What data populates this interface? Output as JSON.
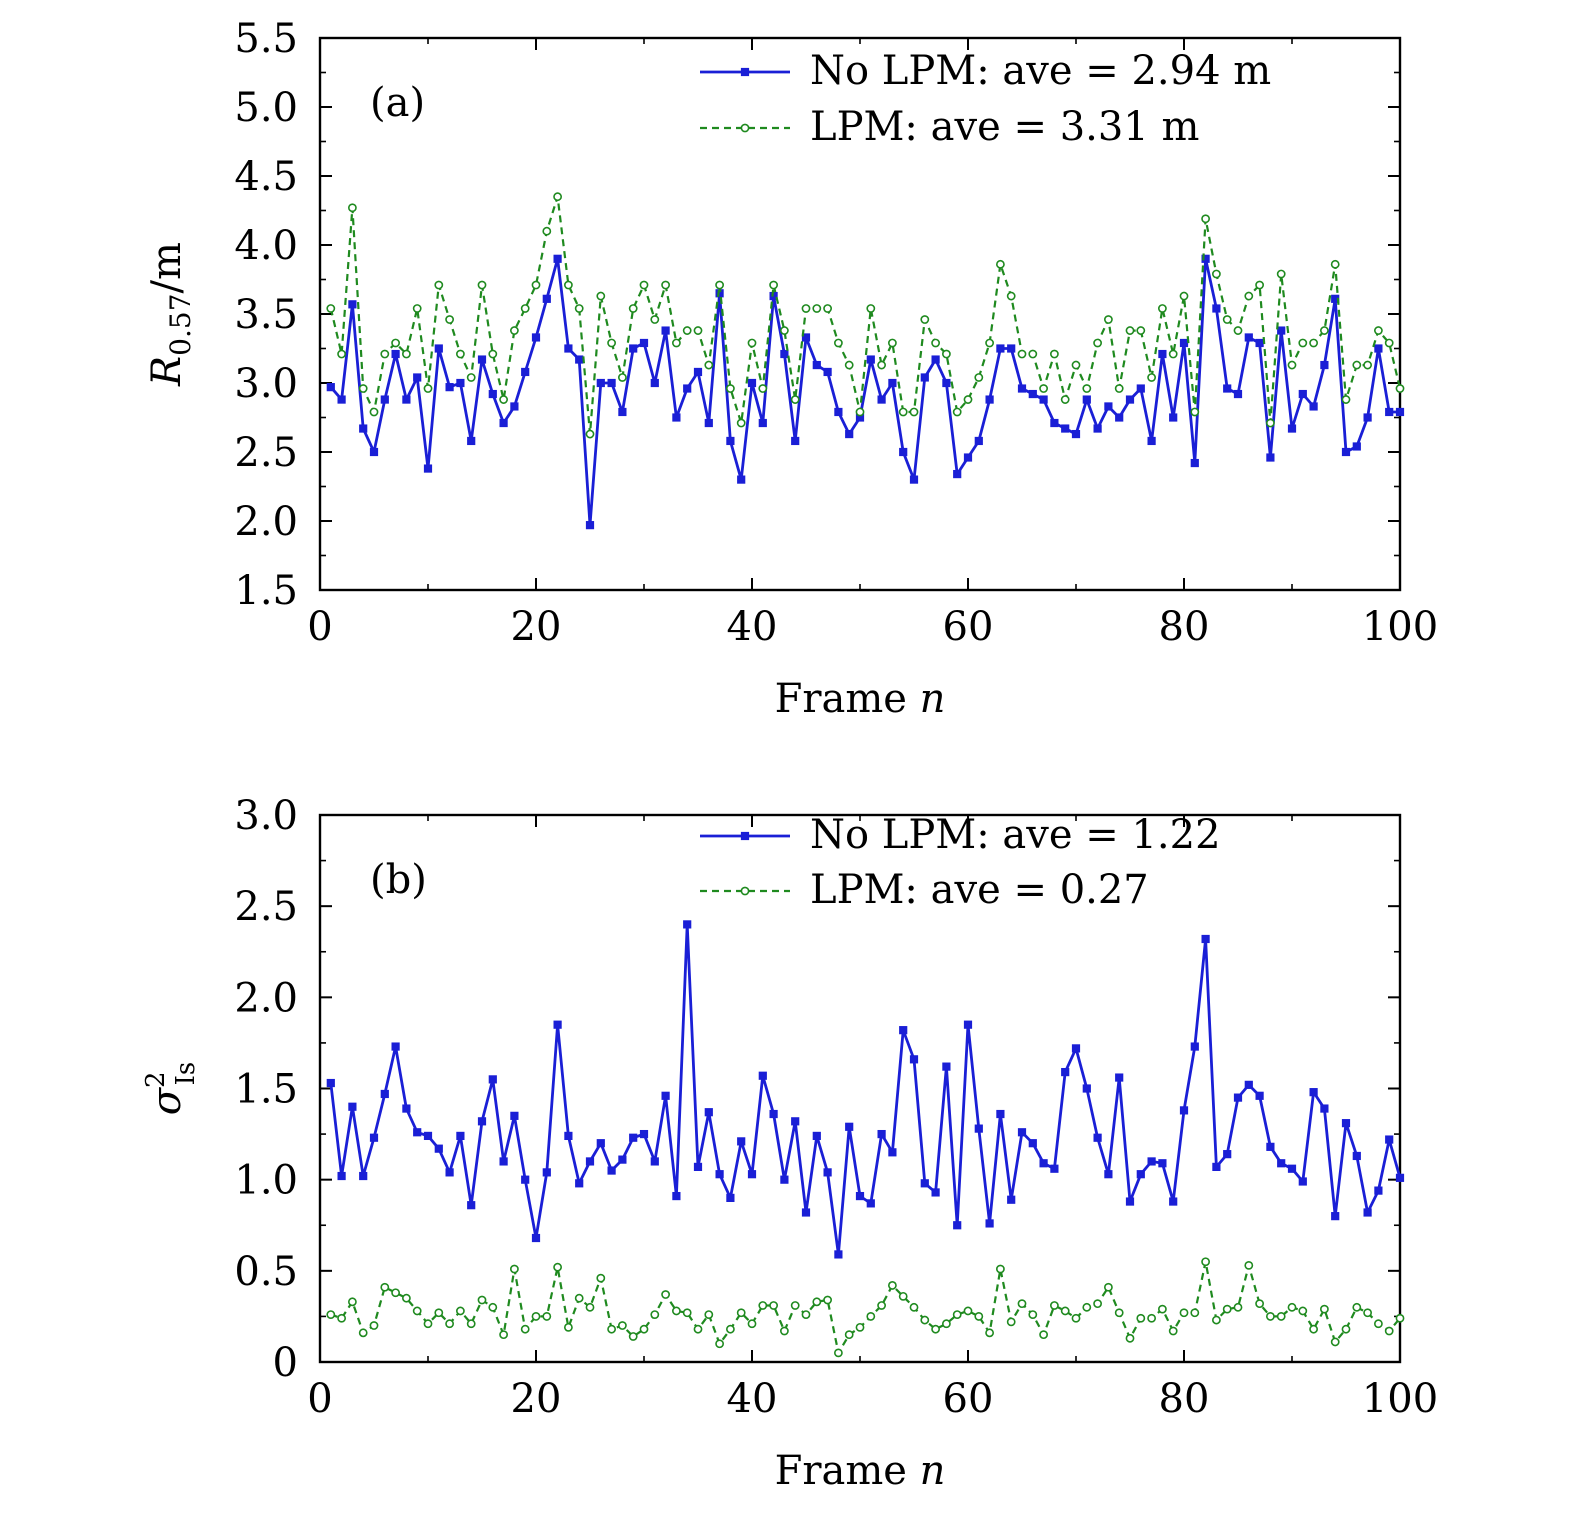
{
  "colors": {
    "no_lpm": "#1a1fd6",
    "lpm": "#1f8a1f",
    "axes": "#000000"
  },
  "chart_data": [
    {
      "type": "line",
      "panel_label": "(a)",
      "xlabel_text": "Frame ",
      "xlabel_var": "n",
      "ylabel_var": "R",
      "ylabel_sub": "0.57",
      "ylabel_unit": "/m",
      "xlim": [
        0,
        100
      ],
      "ylim": [
        1.5,
        5.5
      ],
      "xticks": [
        "0",
        "20",
        "40",
        "60",
        "80",
        "100"
      ],
      "yticks": [
        "1.5",
        "2.0",
        "2.5",
        "3.0",
        "3.5",
        "4.0",
        "4.5",
        "5.0",
        "5.5"
      ],
      "legend_position": "top-right",
      "series": [
        {
          "name": "No LPM: ave = 2.94 m",
          "style": "solid-square",
          "x_start": 1,
          "values": [
            2.97,
            2.88,
            3.57,
            2.67,
            2.5,
            2.88,
            3.21,
            2.88,
            3.04,
            2.38,
            3.25,
            2.97,
            3.0,
            2.58,
            3.17,
            2.92,
            2.71,
            2.83,
            3.08,
            3.33,
            3.61,
            3.9,
            3.25,
            3.17,
            1.97,
            3.0,
            3.0,
            2.79,
            3.25,
            3.29,
            3.0,
            3.38,
            2.75,
            2.96,
            3.08,
            2.71,
            3.65,
            2.58,
            2.3,
            3.0,
            2.71,
            3.63,
            3.21,
            2.58,
            3.33,
            3.13,
            3.08,
            2.79,
            2.63,
            2.75,
            3.17,
            2.88,
            3.0,
            2.5,
            2.3,
            3.04,
            3.17,
            3.0,
            2.34,
            2.46,
            2.58,
            2.88,
            3.25,
            3.25,
            2.96,
            2.92,
            2.88,
            2.71,
            2.67,
            2.63,
            2.88,
            2.67,
            2.83,
            2.75,
            2.88,
            2.96,
            2.58,
            3.21,
            2.75,
            3.29,
            2.42,
            3.9,
            3.54,
            2.96,
            2.92,
            3.33,
            3.29,
            2.46,
            3.38,
            2.67,
            2.92,
            2.83,
            3.13,
            3.61,
            2.5,
            2.54,
            2.75,
            3.25,
            2.79,
            2.79
          ]
        },
        {
          "name": "LPM: ave = 3.31 m",
          "style": "dashed-circle",
          "x_start": 1,
          "values": [
            3.54,
            3.21,
            4.27,
            2.96,
            2.79,
            3.21,
            3.29,
            3.21,
            3.54,
            2.96,
            3.71,
            3.46,
            3.21,
            3.04,
            3.71,
            3.21,
            2.88,
            3.38,
            3.54,
            3.71,
            4.1,
            4.35,
            3.71,
            3.54,
            2.63,
            3.63,
            3.29,
            3.04,
            3.54,
            3.71,
            3.46,
            3.71,
            3.29,
            3.38,
            3.38,
            3.13,
            3.71,
            2.96,
            2.71,
            3.29,
            2.96,
            3.71,
            3.38,
            2.88,
            3.54,
            3.54,
            3.54,
            3.29,
            3.13,
            2.79,
            3.54,
            3.13,
            3.29,
            2.79,
            2.79,
            3.46,
            3.29,
            3.21,
            2.79,
            2.88,
            3.04,
            3.29,
            3.86,
            3.63,
            3.21,
            3.21,
            2.96,
            3.21,
            2.88,
            3.13,
            2.96,
            3.29,
            3.46,
            2.96,
            3.38,
            3.38,
            3.04,
            3.54,
            3.21,
            3.63,
            2.79,
            4.19,
            3.79,
            3.46,
            3.38,
            3.63,
            3.71,
            2.71,
            3.79,
            3.13,
            3.29,
            3.29,
            3.38,
            3.86,
            2.88,
            3.13,
            3.13,
            3.38,
            3.29,
            2.96
          ]
        }
      ]
    },
    {
      "type": "line",
      "panel_label": "(b)",
      "xlabel_text": "Frame ",
      "xlabel_var": "n",
      "ylabel_var": "σ",
      "ylabel_sup": "2",
      "ylabel_sub": "Is",
      "xlim": [
        0,
        100
      ],
      "ylim": [
        0,
        3.0
      ],
      "xticks": [
        "0",
        "20",
        "40",
        "60",
        "80",
        "100"
      ],
      "yticks": [
        "0",
        "0.5",
        "1.0",
        "1.5",
        "2.0",
        "2.5",
        "3.0"
      ],
      "legend_position": "top-right",
      "series": [
        {
          "name": "No LPM: ave = 1.22",
          "style": "solid-square",
          "x_start": 1,
          "values": [
            1.53,
            1.02,
            1.4,
            1.02,
            1.23,
            1.47,
            1.73,
            1.39,
            1.26,
            1.24,
            1.17,
            1.04,
            1.24,
            0.86,
            1.32,
            1.55,
            1.1,
            1.35,
            1.0,
            0.68,
            1.04,
            1.85,
            1.24,
            0.98,
            1.1,
            1.2,
            1.05,
            1.11,
            1.23,
            1.25,
            1.1,
            1.46,
            0.91,
            2.4,
            1.07,
            1.37,
            1.03,
            0.9,
            1.21,
            1.03,
            1.57,
            1.36,
            1.0,
            1.32,
            0.82,
            1.24,
            1.04,
            0.59,
            1.29,
            0.91,
            0.87,
            1.25,
            1.15,
            1.82,
            1.66,
            0.98,
            0.93,
            1.62,
            0.75,
            1.85,
            1.28,
            0.76,
            1.36,
            0.89,
            1.26,
            1.2,
            1.09,
            1.06,
            1.59,
            1.72,
            1.5,
            1.23,
            1.03,
            1.56,
            0.88,
            1.03,
            1.1,
            1.09,
            0.88,
            1.38,
            1.73,
            2.32,
            1.07,
            1.14,
            1.45,
            1.52,
            1.46,
            1.18,
            1.09,
            1.06,
            0.99,
            1.48,
            1.39,
            0.8,
            1.31,
            1.13,
            0.82,
            0.94,
            1.22,
            1.01
          ]
        },
        {
          "name": "LPM: ave = 0.27",
          "style": "dashed-circle",
          "x_start": 1,
          "values": [
            0.26,
            0.24,
            0.33,
            0.16,
            0.2,
            0.41,
            0.38,
            0.35,
            0.28,
            0.21,
            0.27,
            0.21,
            0.28,
            0.21,
            0.34,
            0.3,
            0.15,
            0.51,
            0.18,
            0.25,
            0.25,
            0.52,
            0.19,
            0.35,
            0.3,
            0.46,
            0.18,
            0.2,
            0.14,
            0.18,
            0.26,
            0.37,
            0.28,
            0.27,
            0.18,
            0.26,
            0.1,
            0.18,
            0.27,
            0.21,
            0.31,
            0.31,
            0.17,
            0.31,
            0.26,
            0.33,
            0.34,
            0.05,
            0.15,
            0.19,
            0.25,
            0.31,
            0.42,
            0.36,
            0.3,
            0.23,
            0.18,
            0.21,
            0.26,
            0.28,
            0.25,
            0.16,
            0.51,
            0.22,
            0.32,
            0.26,
            0.15,
            0.31,
            0.28,
            0.24,
            0.3,
            0.32,
            0.41,
            0.27,
            0.13,
            0.24,
            0.24,
            0.29,
            0.17,
            0.27,
            0.27,
            0.55,
            0.23,
            0.29,
            0.3,
            0.53,
            0.32,
            0.25,
            0.25,
            0.3,
            0.28,
            0.18,
            0.29,
            0.11,
            0.18,
            0.3,
            0.27,
            0.21,
            0.17,
            0.24
          ]
        }
      ]
    }
  ]
}
